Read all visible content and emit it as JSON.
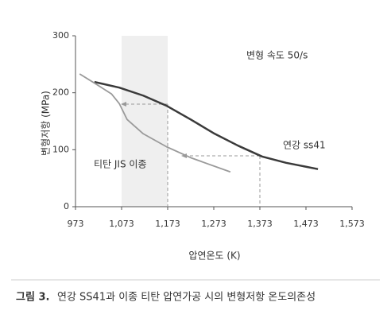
{
  "chart_data": {
    "type": "line",
    "annotation": "변형 속도 50/s",
    "x_label": "압연온도 (K)",
    "y_label": "변형저항 (MPa)",
    "xlim": [
      973,
      1573
    ],
    "xticks": [
      973,
      {
        "value": 1073,
        "label": "1,073"
      },
      {
        "value": 1173,
        "label": "1,173"
      },
      {
        "value": 1273,
        "label": "1,273"
      },
      {
        "value": 1373,
        "label": "1,373"
      },
      {
        "value": 1473,
        "label": "1,473"
      },
      {
        "value": 1573,
        "label": "1,573"
      }
    ],
    "ylim": [
      0,
      300
    ],
    "yticks": [
      0,
      100,
      200,
      300
    ],
    "series": [
      {
        "name": "연강 ss41",
        "color": "#3a3a3a",
        "x": [
          1014,
          1068,
          1120,
          1171,
          1223,
          1275,
          1326,
          1378,
          1430,
          1499
        ],
        "values": [
          219,
          209,
          195,
          177,
          153,
          128,
          107,
          88,
          77,
          66
        ]
      },
      {
        "name": "티탄 JIS 이종",
        "color": "#9a9a9a",
        "x": [
          982,
          1016,
          1051,
          1068,
          1085,
          1120,
          1171,
          1223,
          1309
        ],
        "values": [
          233,
          216,
          198,
          181,
          153,
          128,
          105,
          86,
          61
        ]
      }
    ],
    "caption_label": "그림 3.",
    "caption_text": "연강 SS41과 이종 티탄 압연가공 시의 변형저항 온도의존성"
  }
}
